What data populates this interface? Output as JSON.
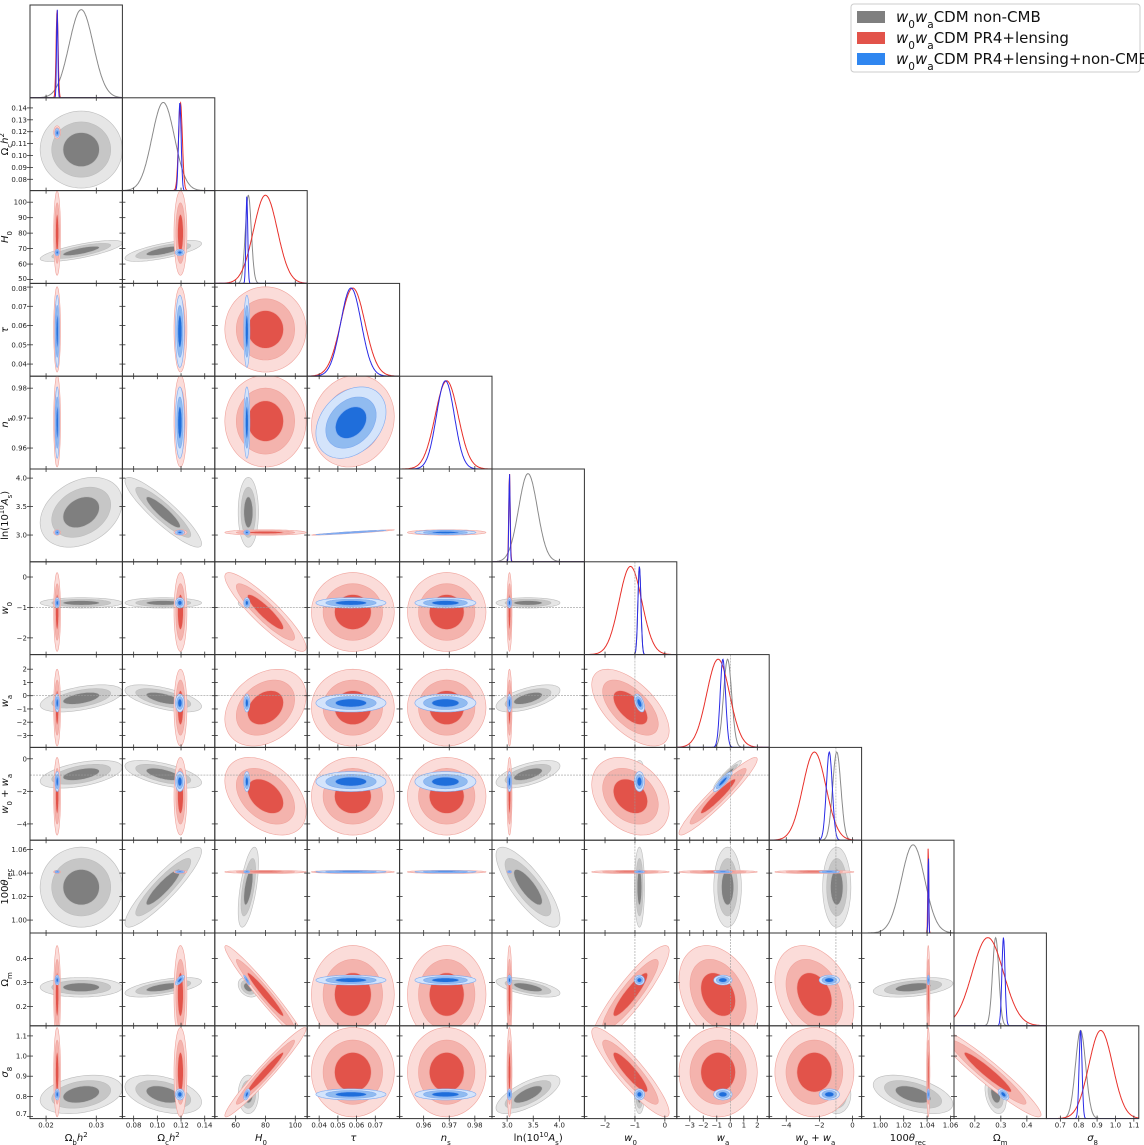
{
  "chart_data": {
    "type": "triangle-contour",
    "contour_levels": [
      0.68,
      0.95,
      0.997
    ],
    "legend": {
      "placement": "top-right",
      "entries": [
        {
          "segments": [
            {
              "t": "w",
              "i": 1
            },
            {
              "t": "0",
              "s": "sub"
            },
            {
              "t": "w",
              "i": 1
            },
            {
              "t": "a",
              "s": "sub"
            },
            {
              "t": "CDM non-CMB"
            }
          ]
        },
        {
          "segments": [
            {
              "t": "w",
              "i": 1
            },
            {
              "t": "0",
              "s": "sub"
            },
            {
              "t": "w",
              "i": 1
            },
            {
              "t": "a",
              "s": "sub"
            },
            {
              "t": "CDM PR4+lensing"
            }
          ]
        },
        {
          "segments": [
            {
              "t": "w",
              "i": 1
            },
            {
              "t": "0",
              "s": "sub"
            },
            {
              "t": "w",
              "i": 1
            },
            {
              "t": "a",
              "s": "sub"
            },
            {
              "t": "CDM PR4+lensing+non-CMB"
            }
          ]
        }
      ]
    },
    "params": [
      {
        "label": [
          {
            "t": "Ω"
          },
          {
            "t": "b",
            "s": "sub"
          },
          {
            "t": "h",
            "i": 1
          },
          {
            "t": "2",
            "s": "sup"
          }
        ],
        "xrange": [
          0.0168,
          0.0352
        ],
        "yrange": [
          0.0168,
          0.0352
        ],
        "xticks": [
          "0.02",
          "0.03"
        ],
        "yticks": []
      },
      {
        "label": [
          {
            "t": "Ω"
          },
          {
            "t": "c",
            "s": "sub"
          },
          {
            "t": "h",
            "i": 1
          },
          {
            "t": "2",
            "s": "sup"
          }
        ],
        "xrange": [
          0.0705,
          0.1485
        ],
        "yrange": [
          0.0705,
          0.1485
        ],
        "xticks": [
          "0.08",
          "0.10",
          "0.12",
          "0.14"
        ],
        "yticks": [
          "0.08",
          "0.09",
          "0.10",
          "0.11",
          "0.12",
          "0.13",
          "0.14"
        ]
      },
      {
        "label": [
          {
            "t": "H",
            "i": 1
          },
          {
            "t": "0",
            "s": "sub"
          }
        ],
        "xrange": [
          46,
          108
        ],
        "yrange": [
          47.5,
          107.5
        ],
        "xticks": [
          "60",
          "80",
          "100"
        ],
        "yticks": [
          "50",
          "60",
          "70",
          "80",
          "90",
          "100"
        ]
      },
      {
        "label": [
          {
            "t": "τ",
            "i": 1
          }
        ],
        "xrange": [
          0.0336,
          0.083
        ],
        "yrange": [
          0.0337,
          0.0819
        ],
        "xticks": [
          "0.04",
          "0.05",
          "0.06",
          "0.07"
        ],
        "yticks": [
          "0.04",
          "0.05",
          "0.06",
          "0.07",
          "0.08"
        ]
      },
      {
        "label": [
          {
            "t": "n",
            "i": 1
          },
          {
            "t": "s",
            "s": "sub"
          }
        ],
        "xrange": [
          0.9506,
          0.9867
        ],
        "yrange": [
          0.953,
          0.984
        ],
        "xticks": [
          "0.96",
          "0.97",
          "0.98"
        ],
        "yticks": [
          "0.96",
          "0.97",
          "0.98"
        ]
      },
      {
        "label": [
          {
            "t": "ln(10"
          },
          {
            "t": "10",
            "s": "sup"
          },
          {
            "t": "A",
            "i": 1
          },
          {
            "t": "s",
            "s": "sub"
          },
          {
            "t": ")"
          }
        ],
        "xrange": [
          2.71,
          4.48
        ],
        "yrange": [
          2.53,
          4.16
        ],
        "xticks": [
          "3.0",
          "3.5",
          "4.0"
        ],
        "yticks": [
          "3.0",
          "3.5",
          "4.0"
        ]
      },
      {
        "label": [
          {
            "t": "w",
            "i": 1
          },
          {
            "t": "0",
            "s": "sub"
          }
        ],
        "xrange": [
          -2.69,
          0.4
        ],
        "yrange": [
          -2.55,
          0.5
        ],
        "xticks": [
          "−2",
          "−1",
          "0"
        ],
        "yticks": [
          "−2",
          "−1",
          "0"
        ],
        "ref": -1
      },
      {
        "label": [
          {
            "t": "w",
            "i": 1
          },
          {
            "t": "a",
            "s": "sub"
          }
        ],
        "xrange": [
          -3.96,
          2.88
        ],
        "yrange": [
          -3.9,
          3.1
        ],
        "xticks": [
          "−3",
          "−2",
          "−1",
          "0",
          "1",
          "2"
        ],
        "yticks": [
          "−3",
          "−2",
          "−1",
          "0",
          "1",
          "2"
        ],
        "ref": 0
      },
      {
        "label": [
          {
            "t": "w",
            "i": 1
          },
          {
            "t": "0",
            "s": "sub"
          },
          {
            "t": " + "
          },
          {
            "t": "w",
            "i": 1
          },
          {
            "t": "a",
            "s": "sub"
          }
        ],
        "xrange": [
          -5.03,
          0.55
        ],
        "yrange": [
          -5,
          0.7
        ],
        "xticks": [
          "−4",
          "−2",
          "0"
        ],
        "yticks": [
          "−4",
          "−2",
          "0"
        ],
        "ref": -1
      },
      {
        "label": [
          {
            "t": "100"
          },
          {
            "t": "θ",
            "i": 1
          },
          {
            "t": "rec",
            "s": "sub"
          }
        ],
        "xrange": [
          0.984,
          1.063
        ],
        "yrange": [
          0.989,
          1.068
        ],
        "xticks": [
          "1.00",
          "1.02",
          "1.04",
          "1.06"
        ],
        "yticks": [
          "1.00",
          "1.02",
          "1.04",
          "1.06"
        ]
      },
      {
        "label": [
          {
            "t": "Ω"
          },
          {
            "t": "m",
            "s": "sub"
          }
        ],
        "xrange": [
          0.12,
          0.475
        ],
        "yrange": [
          0.119,
          0.507
        ],
        "xticks": [
          "0.2",
          "0.3",
          "0.4"
        ],
        "yticks": [
          "0.2",
          "0.3",
          "0.4"
        ]
      },
      {
        "label": [
          {
            "t": "σ",
            "i": 1
          },
          {
            "t": "8",
            "s": "sub"
          }
        ],
        "xrange": [
          0.624,
          1.127
        ],
        "yrange": [
          0.69,
          1.15
        ],
        "xticks": [
          "0.7",
          "0.8",
          "0.9",
          "1.0",
          "1.1"
        ],
        "yticks": [
          "0.7",
          "0.8",
          "0.9",
          "1.0",
          "1.1"
        ]
      }
    ],
    "datasets": [
      {
        "name": "w0waCDM non-CMB",
        "fill": [
          "#e6e6e6",
          "#c6c6c6",
          "#7f7f7f"
        ],
        "edge": "#bdbdbd",
        "line": "#8a8a8a",
        "legend_color": "#7f7f7f",
        "mean": [
          0.027,
          0.105,
          68.5,
          null,
          null,
          3.4,
          -0.85,
          -0.2,
          -0.95,
          1.028,
          0.28,
          0.81
        ],
        "sigma": [
          0.0024,
          0.0095,
          2.0,
          null,
          null,
          0.18,
          0.05,
          0.3,
          0.25,
          0.01,
          0.012,
          0.028
        ],
        "corr": [
          [
            0,
            2,
            0.75
          ],
          [
            1,
            2,
            0.7
          ],
          [
            1,
            5,
            -0.9
          ],
          [
            0,
            5,
            0.3
          ],
          [
            5,
            11,
            0.7
          ],
          [
            1,
            9,
            0.9
          ],
          [
            5,
            9,
            -0.8
          ],
          [
            6,
            7,
            -0.7
          ],
          [
            5,
            7,
            0.6
          ],
          [
            5,
            8,
            0.6
          ],
          [
            1,
            7,
            -0.6
          ],
          [
            1,
            8,
            -0.6
          ],
          [
            1,
            10,
            0.6
          ],
          [
            9,
            10,
            0.4
          ],
          [
            5,
            10,
            -0.6
          ],
          [
            1,
            11,
            -0.4
          ],
          [
            0,
            11,
            0.3
          ],
          [
            9,
            11,
            -0.5
          ],
          [
            0,
            7,
            0.5
          ],
          [
            0,
            8,
            0.5
          ],
          [
            2,
            10,
            -0.3
          ],
          [
            7,
            8,
            0.95
          ],
          [
            2,
            9,
            0.6
          ],
          [
            10,
            11,
            -0.3
          ]
        ]
      },
      {
        "name": "w0waCDM PR4+lensing",
        "fill": [
          "#fbdcd9",
          "#f4b3ad",
          "#e2534a"
        ],
        "edge": "#f0a39c",
        "line": "#e8302a",
        "legend_color": "#e2534a",
        "mean": [
          0.0222,
          0.1195,
          80,
          0.058,
          0.969,
          3.045,
          -1.15,
          -0.9,
          -2.3,
          1.041,
          0.25,
          0.92
        ],
        "sigma": [
          0.0002,
          0.0016,
          8,
          0.0065,
          0.0045,
          0.014,
          0.38,
          0.85,
          0.7,
          0.0004,
          0.06,
          0.065
        ],
        "corr": [
          [
            2,
            6,
            -0.9
          ],
          [
            2,
            10,
            -0.97
          ],
          [
            2,
            11,
            0.97
          ],
          [
            6,
            10,
            0.9
          ],
          [
            6,
            11,
            -0.9
          ],
          [
            10,
            11,
            -0.95
          ],
          [
            6,
            7,
            -0.6
          ],
          [
            7,
            8,
            0.95
          ],
          [
            6,
            8,
            -0.3
          ],
          [
            3,
            5,
            0.95
          ],
          [
            3,
            4,
            0.1
          ],
          [
            7,
            10,
            -0.3
          ],
          [
            8,
            10,
            -0.3
          ],
          [
            2,
            8,
            -0.4
          ],
          [
            2,
            7,
            0.3
          ]
        ]
      },
      {
        "name": "w0waCDM PR4+lensing+non-CMB",
        "fill": [
          "#d4e4fb",
          "#90bbf0",
          "#1f6edb"
        ],
        "edge": "#7eaaf0",
        "line": "#2a2ae6",
        "legend_color": "#2f86f0",
        "mean": [
          0.02222,
          0.119,
          67.5,
          0.057,
          0.9685,
          3.045,
          -0.85,
          -0.55,
          -1.4,
          1.0411,
          0.31,
          0.81
        ],
        "sigma": [
          0.00013,
          0.0011,
          0.6,
          0.0055,
          0.0035,
          0.012,
          0.05,
          0.2,
          0.18,
          0.0003,
          0.006,
          0.008
        ],
        "corr": [
          [
            3,
            5,
            0.95
          ],
          [
            3,
            4,
            0.3
          ],
          [
            6,
            7,
            -0.5
          ],
          [
            7,
            8,
            0.9
          ],
          [
            2,
            10,
            -0.9
          ],
          [
            2,
            11,
            0.5
          ],
          [
            10,
            11,
            -0.5
          ],
          [
            1,
            10,
            0.7
          ]
        ]
      }
    ]
  }
}
